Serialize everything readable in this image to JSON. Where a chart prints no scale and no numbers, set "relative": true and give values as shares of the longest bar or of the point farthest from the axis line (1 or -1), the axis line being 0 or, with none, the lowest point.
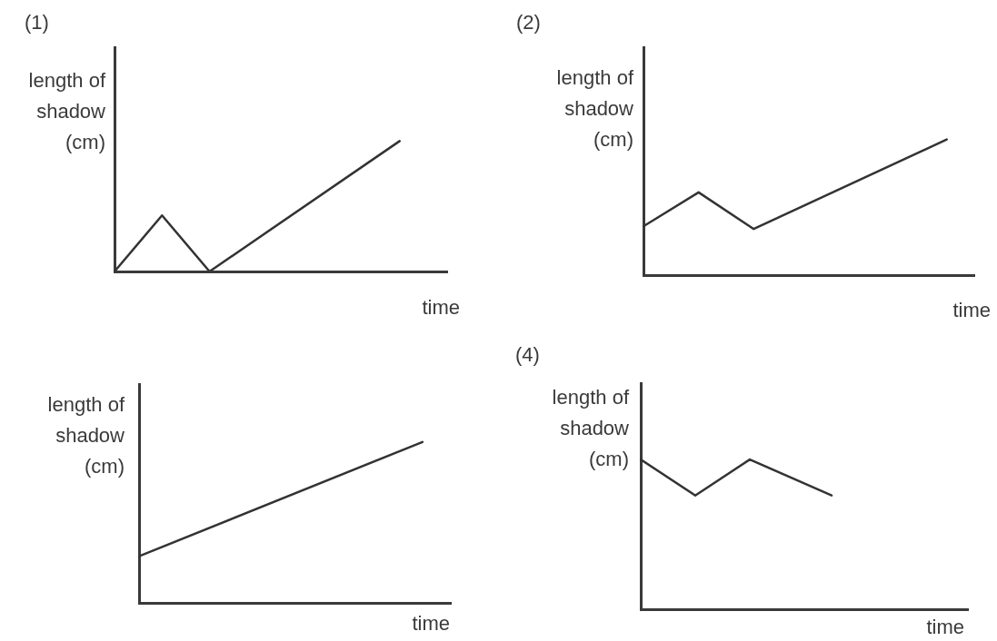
{
  "chart_data": [
    {
      "type": "line",
      "title": "(1)",
      "ylabel": "length of\nshadow\n(cm)",
      "xlabel": "time",
      "relative": true,
      "color": "#333333",
      "categories": [
        null,
        null,
        null,
        null,
        null,
        null,
        null,
        null
      ],
      "values": [
        0,
        0.43,
        0,
        null,
        null,
        null,
        1,
        null
      ]
    },
    {
      "type": "line",
      "title": "(2)",
      "ylabel": "length of\nshadow\n(cm)",
      "xlabel": "time",
      "relative": true,
      "color": "#333333",
      "categories": [
        null,
        null,
        null,
        null,
        null,
        null,
        null,
        null,
        null,
        null,
        null,
        null,
        null
      ],
      "values": [
        0.36,
        null,
        0.61,
        null,
        0.34,
        null,
        null,
        null,
        null,
        null,
        null,
        1,
        null
      ]
    },
    {
      "type": "line",
      "ylabel": "length of\nshadow\n(cm)",
      "xlabel": "time",
      "relative": true,
      "color": "#333333",
      "categories": [
        null,
        null,
        null,
        null,
        null,
        null,
        null,
        null,
        null,
        null,
        null,
        null
      ],
      "values": [
        0.29,
        null,
        null,
        null,
        null,
        null,
        null,
        null,
        null,
        null,
        1,
        null
      ]
    },
    {
      "type": "line",
      "title": "(4)",
      "ylabel": "length of\nshadow\n(cm)",
      "xlabel": "time",
      "relative": true,
      "color": "#333333",
      "categories": [
        null,
        null,
        null,
        null,
        null,
        null,
        null,
        null,
        null,
        null,
        null,
        null,
        null
      ],
      "values": [
        1,
        null,
        0.76,
        null,
        1,
        null,
        null,
        0.76,
        null,
        null,
        null,
        null,
        null
      ]
    }
  ]
}
